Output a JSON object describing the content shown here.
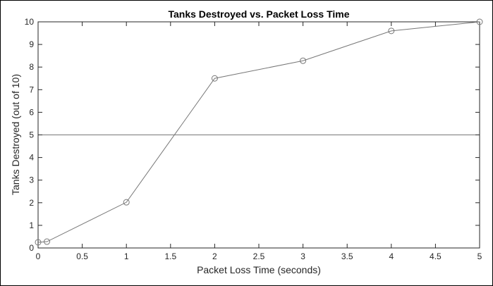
{
  "chart_data": {
    "type": "line",
    "title": "Tanks Destroyed vs. Packet Loss Time",
    "xlabel": "Packet Loss Time (seconds)",
    "ylabel": "Tanks Destroyed (out of 10)",
    "xlim": [
      0,
      5
    ],
    "ylim": [
      0,
      10
    ],
    "xticks": [
      0,
      0.5,
      1,
      1.5,
      2,
      2.5,
      3,
      3.5,
      4,
      4.5,
      5
    ],
    "xtick_labels": [
      "0",
      "0.5",
      "1",
      "1.5",
      "2",
      "2.5",
      "3",
      "3.5",
      "4",
      "4.5",
      "5"
    ],
    "yticks": [
      0,
      1,
      2,
      3,
      4,
      5,
      6,
      7,
      8,
      9,
      10
    ],
    "ytick_labels": [
      "0",
      "1",
      "2",
      "3",
      "4",
      "5",
      "6",
      "7",
      "8",
      "9",
      "10"
    ],
    "grid": false,
    "series": [
      {
        "marker": "circle",
        "x": [
          0,
          0.1,
          1,
          2,
          3,
          4,
          5
        ],
        "values": [
          0.25,
          0.28,
          2.02,
          7.5,
          8.28,
          9.6,
          10
        ]
      }
    ],
    "reference_lines": [
      {
        "orientation": "horizontal",
        "y": 5
      }
    ],
    "colors": {
      "line": "#777777",
      "axes": "#262626"
    }
  }
}
